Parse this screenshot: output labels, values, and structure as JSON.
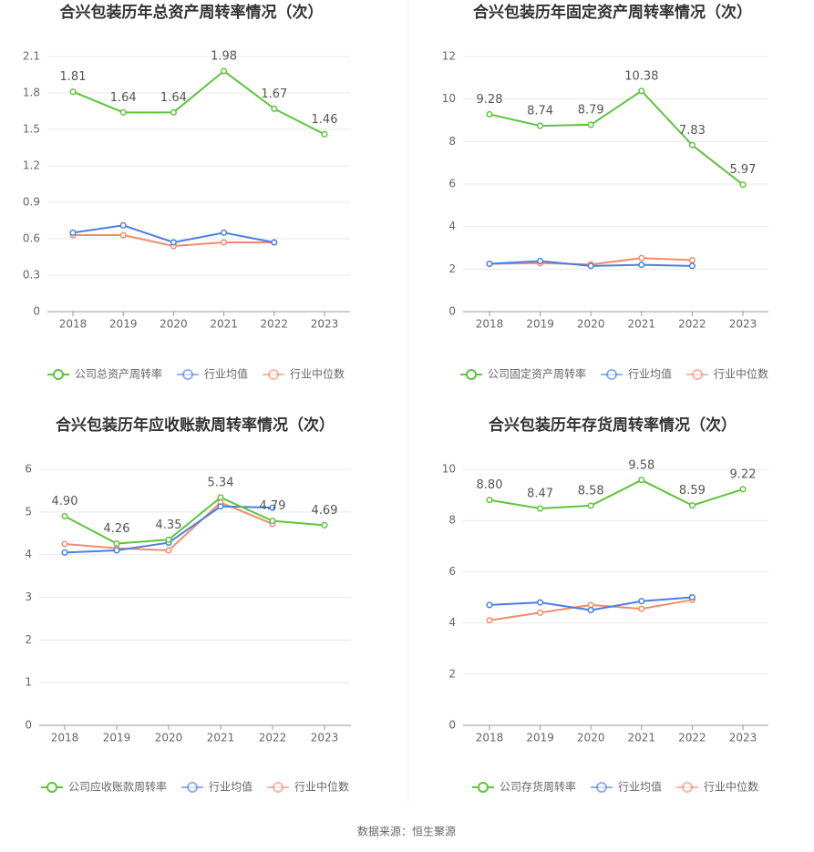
{
  "chart_data": [
    {
      "type": "line",
      "title": "合兴包装历年总资产周转率情况（次）",
      "categories": [
        "2018",
        "2019",
        "2020",
        "2021",
        "2022",
        "2023"
      ],
      "ylim": [
        0,
        2.1
      ],
      "yticks": [
        0,
        0.3,
        0.6,
        0.9,
        1.2,
        1.5,
        1.8,
        2.1
      ],
      "grid": true,
      "series": [
        {
          "name": "公司总资产周转率",
          "color": "#5ec43c",
          "values": [
            1.81,
            1.64,
            1.64,
            1.98,
            1.67,
            1.46
          ],
          "value_labels": [
            "1.81",
            "1.64",
            "1.64",
            "1.98",
            "1.67",
            "1.46"
          ]
        },
        {
          "name": "行业均值",
          "color": "#4a7fe0",
          "values": [
            0.65,
            0.71,
            0.57,
            0.65,
            0.57,
            null
          ]
        },
        {
          "name": "行业中位数",
          "color": "#f28b6b",
          "values": [
            0.63,
            0.63,
            0.54,
            0.57,
            0.57,
            null
          ]
        }
      ]
    },
    {
      "type": "line",
      "title": "合兴包装历年固定资产周转率情况（次）",
      "categories": [
        "2018",
        "2019",
        "2020",
        "2021",
        "2022",
        "2023"
      ],
      "ylim": [
        0,
        12
      ],
      "yticks": [
        0,
        2,
        4,
        6,
        8,
        10,
        12
      ],
      "grid": true,
      "series": [
        {
          "name": "公司固定资产周转率",
          "color": "#5ec43c",
          "values": [
            9.28,
            8.74,
            8.79,
            10.38,
            7.83,
            5.97
          ],
          "value_labels": [
            "9.28",
            "8.74",
            "8.79",
            "10.38",
            "7.83",
            "5.97"
          ]
        },
        {
          "name": "行业均值",
          "color": "#4a7fe0",
          "values": [
            2.25,
            2.38,
            2.15,
            2.2,
            2.15,
            null
          ]
        },
        {
          "name": "行业中位数",
          "color": "#f28b6b",
          "values": [
            2.25,
            2.28,
            2.22,
            2.52,
            2.42,
            null
          ]
        }
      ]
    },
    {
      "type": "line",
      "title": "合兴包装历年应收账款周转率情况（次）",
      "categories": [
        "2018",
        "2019",
        "2020",
        "2021",
        "2022",
        "2023"
      ],
      "ylim": [
        0,
        6
      ],
      "yticks": [
        0,
        1,
        2,
        3,
        4,
        5,
        6
      ],
      "grid": true,
      "series": [
        {
          "name": "公司应收账款周转率",
          "color": "#5ec43c",
          "values": [
            4.9,
            4.26,
            4.35,
            5.34,
            4.79,
            4.69
          ],
          "value_labels": [
            "4.90",
            "4.26",
            "4.35",
            "5.34",
            "4.79",
            "4.69"
          ]
        },
        {
          "name": "行业均值",
          "color": "#4a7fe0",
          "values": [
            4.05,
            4.1,
            4.28,
            5.13,
            5.1,
            null
          ]
        },
        {
          "name": "行业中位数",
          "color": "#f28b6b",
          "values": [
            4.25,
            4.15,
            4.1,
            5.22,
            4.72,
            null
          ]
        }
      ]
    },
    {
      "type": "line",
      "title": "合兴包装历年存货周转率情况（次）",
      "categories": [
        "2018",
        "2019",
        "2020",
        "2021",
        "2022",
        "2023"
      ],
      "ylim": [
        0,
        10
      ],
      "yticks": [
        0,
        2,
        4,
        6,
        8,
        10
      ],
      "grid": true,
      "series": [
        {
          "name": "公司存货周转率",
          "color": "#5ec43c",
          "values": [
            8.8,
            8.47,
            8.58,
            9.58,
            8.59,
            9.22
          ],
          "value_labels": [
            "8.80",
            "8.47",
            "8.58",
            "9.58",
            "8.59",
            "9.22"
          ]
        },
        {
          "name": "行业均值",
          "color": "#4a7fe0",
          "values": [
            4.7,
            4.8,
            4.5,
            4.85,
            5.0,
            null
          ]
        },
        {
          "name": "行业中位数",
          "color": "#f28b6b",
          "values": [
            4.1,
            4.4,
            4.7,
            4.55,
            4.9,
            null
          ]
        }
      ]
    }
  ],
  "source": "数据来源：恒生聚源"
}
